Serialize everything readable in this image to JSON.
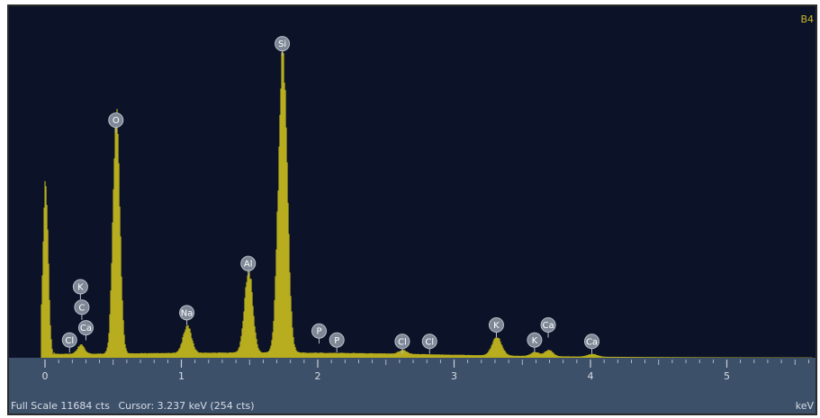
{
  "status": {
    "full_scale": "Full Scale 11684 cts",
    "cursor": "Cursor: 3.237 keV (254 cts)"
  },
  "corner_label": "B4",
  "colors": {
    "background": "#0c1328",
    "spectrum": "#b7ad1e",
    "axis_band": "#3d5069"
  },
  "chart_data": {
    "type": "area",
    "xlabel": "keV",
    "xlim": [
      0,
      5.6
    ],
    "ylim": [
      0,
      11684
    ],
    "x_ticks": [
      0,
      1,
      2,
      3,
      4,
      5
    ],
    "tick_labels": [
      "0",
      "1",
      "2",
      "3",
      "4",
      "5"
    ],
    "peaks": [
      {
        "x": 0.0,
        "y": 6300,
        "w": 0.02
      },
      {
        "x": 0.26,
        "y": 330,
        "w": 0.025
      },
      {
        "x": 0.52,
        "y": 9000,
        "w": 0.025
      },
      {
        "x": 1.04,
        "y": 1020,
        "w": 0.03
      },
      {
        "x": 1.49,
        "y": 3020,
        "w": 0.03
      },
      {
        "x": 1.74,
        "y": 11100,
        "w": 0.032
      },
      {
        "x": 2.62,
        "y": 140,
        "w": 0.03
      },
      {
        "x": 3.31,
        "y": 680,
        "w": 0.035
      },
      {
        "x": 3.59,
        "y": 150,
        "w": 0.03
      },
      {
        "x": 3.69,
        "y": 230,
        "w": 0.03
      },
      {
        "x": 4.01,
        "y": 100,
        "w": 0.035
      }
    ],
    "element_labels": [
      {
        "el": "Si",
        "x": 1.74,
        "y": 11500
      },
      {
        "el": "O",
        "x": 0.52,
        "y": 8700
      },
      {
        "el": "Al",
        "x": 1.49,
        "y": 3450
      },
      {
        "el": "K",
        "x": 0.26,
        "y": 2600
      },
      {
        "el": "C",
        "x": 0.27,
        "y": 1850
      },
      {
        "el": "Ca",
        "x": 0.3,
        "y": 1100
      },
      {
        "el": "Cl",
        "x": 0.18,
        "y": 650
      },
      {
        "el": "Na",
        "x": 1.04,
        "y": 1650
      },
      {
        "el": "P",
        "x": 2.01,
        "y": 980
      },
      {
        "el": "P",
        "x": 2.14,
        "y": 650
      },
      {
        "el": "Cl",
        "x": 2.62,
        "y": 600
      },
      {
        "el": "Cl",
        "x": 2.82,
        "y": 600
      },
      {
        "el": "K",
        "x": 3.31,
        "y": 1200
      },
      {
        "el": "Ca",
        "x": 3.69,
        "y": 1200
      },
      {
        "el": "K",
        "x": 3.59,
        "y": 650
      },
      {
        "el": "Ca",
        "x": 4.01,
        "y": 600
      }
    ]
  }
}
